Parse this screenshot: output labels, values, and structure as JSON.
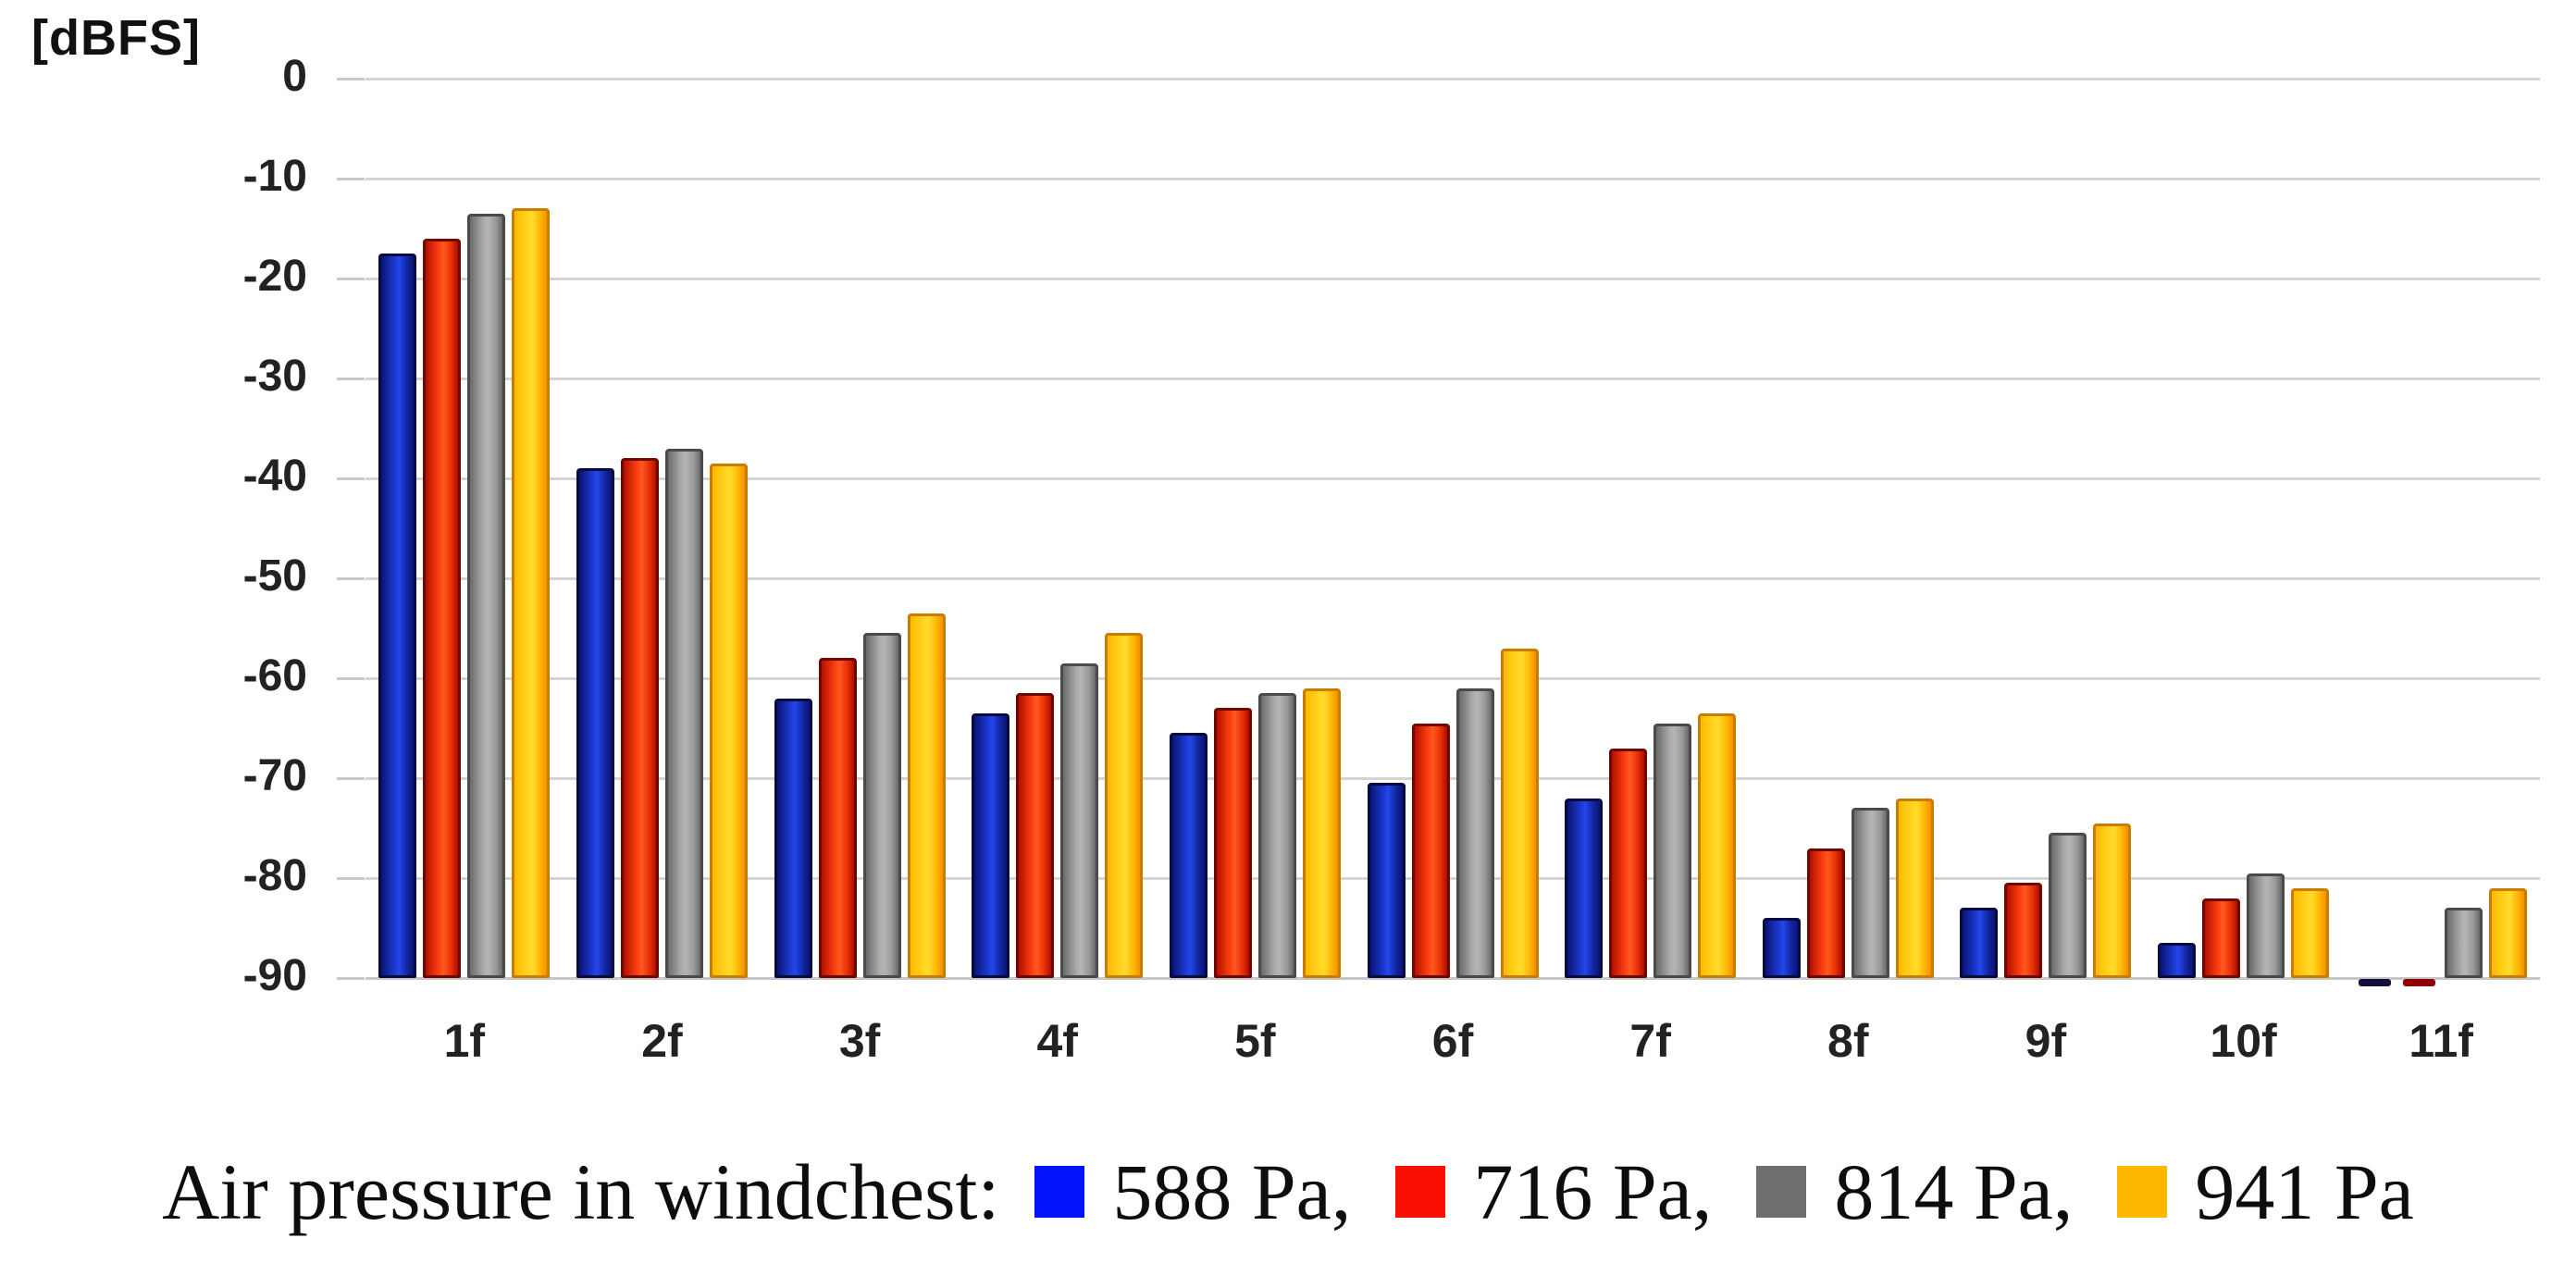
{
  "y_axis_unit": "[dBFS]",
  "chart_data": {
    "type": "bar",
    "title": "",
    "ylabel": "[dBFS]",
    "xlabel": "",
    "ylim": [
      -90,
      0
    ],
    "yticks": [
      0,
      -10,
      -20,
      -30,
      -40,
      -50,
      -60,
      -70,
      -80,
      -90
    ],
    "grid": true,
    "legend_position": "bottom",
    "categories": [
      "1f",
      "2f",
      "3f",
      "4f",
      "5f",
      "6f",
      "7f",
      "8f",
      "9f",
      "10f",
      "11f"
    ],
    "series": [
      {
        "name": "588 Pa",
        "color": "#0413fa",
        "values": [
          -17.5,
          -39,
          -62,
          -63.5,
          -65.5,
          -70.5,
          -72,
          -84,
          -83,
          -86.5,
          -90
        ]
      },
      {
        "name": "716 Pa",
        "color": "#fa1002",
        "values": [
          -16,
          -38,
          -58,
          -61.5,
          -63,
          -64.5,
          -67,
          -77,
          -80.5,
          -82,
          -90
        ]
      },
      {
        "name": "814 Pa",
        "color": "#6e6e6e",
        "values": [
          -13.5,
          -37,
          -55.5,
          -58.5,
          -61.5,
          -61,
          -64.5,
          -73,
          -75.5,
          -79.5,
          -83
        ]
      },
      {
        "name": "941 Pa",
        "color": "#fcb900",
        "values": [
          -13,
          -38.5,
          -53.5,
          -55.5,
          -61,
          -57,
          -63.5,
          -72,
          -74.5,
          -81,
          -81
        ]
      }
    ]
  },
  "legend": {
    "prefix": "Air pressure in windchest:",
    "items": [
      {
        "label": "588 Pa,",
        "color": "#0413fa"
      },
      {
        "label": "716 Pa,",
        "color": "#fa1002"
      },
      {
        "label": "814 Pa,",
        "color": "#6e6e6e"
      },
      {
        "label": "941 Pa",
        "color": "#fcb900"
      }
    ]
  }
}
